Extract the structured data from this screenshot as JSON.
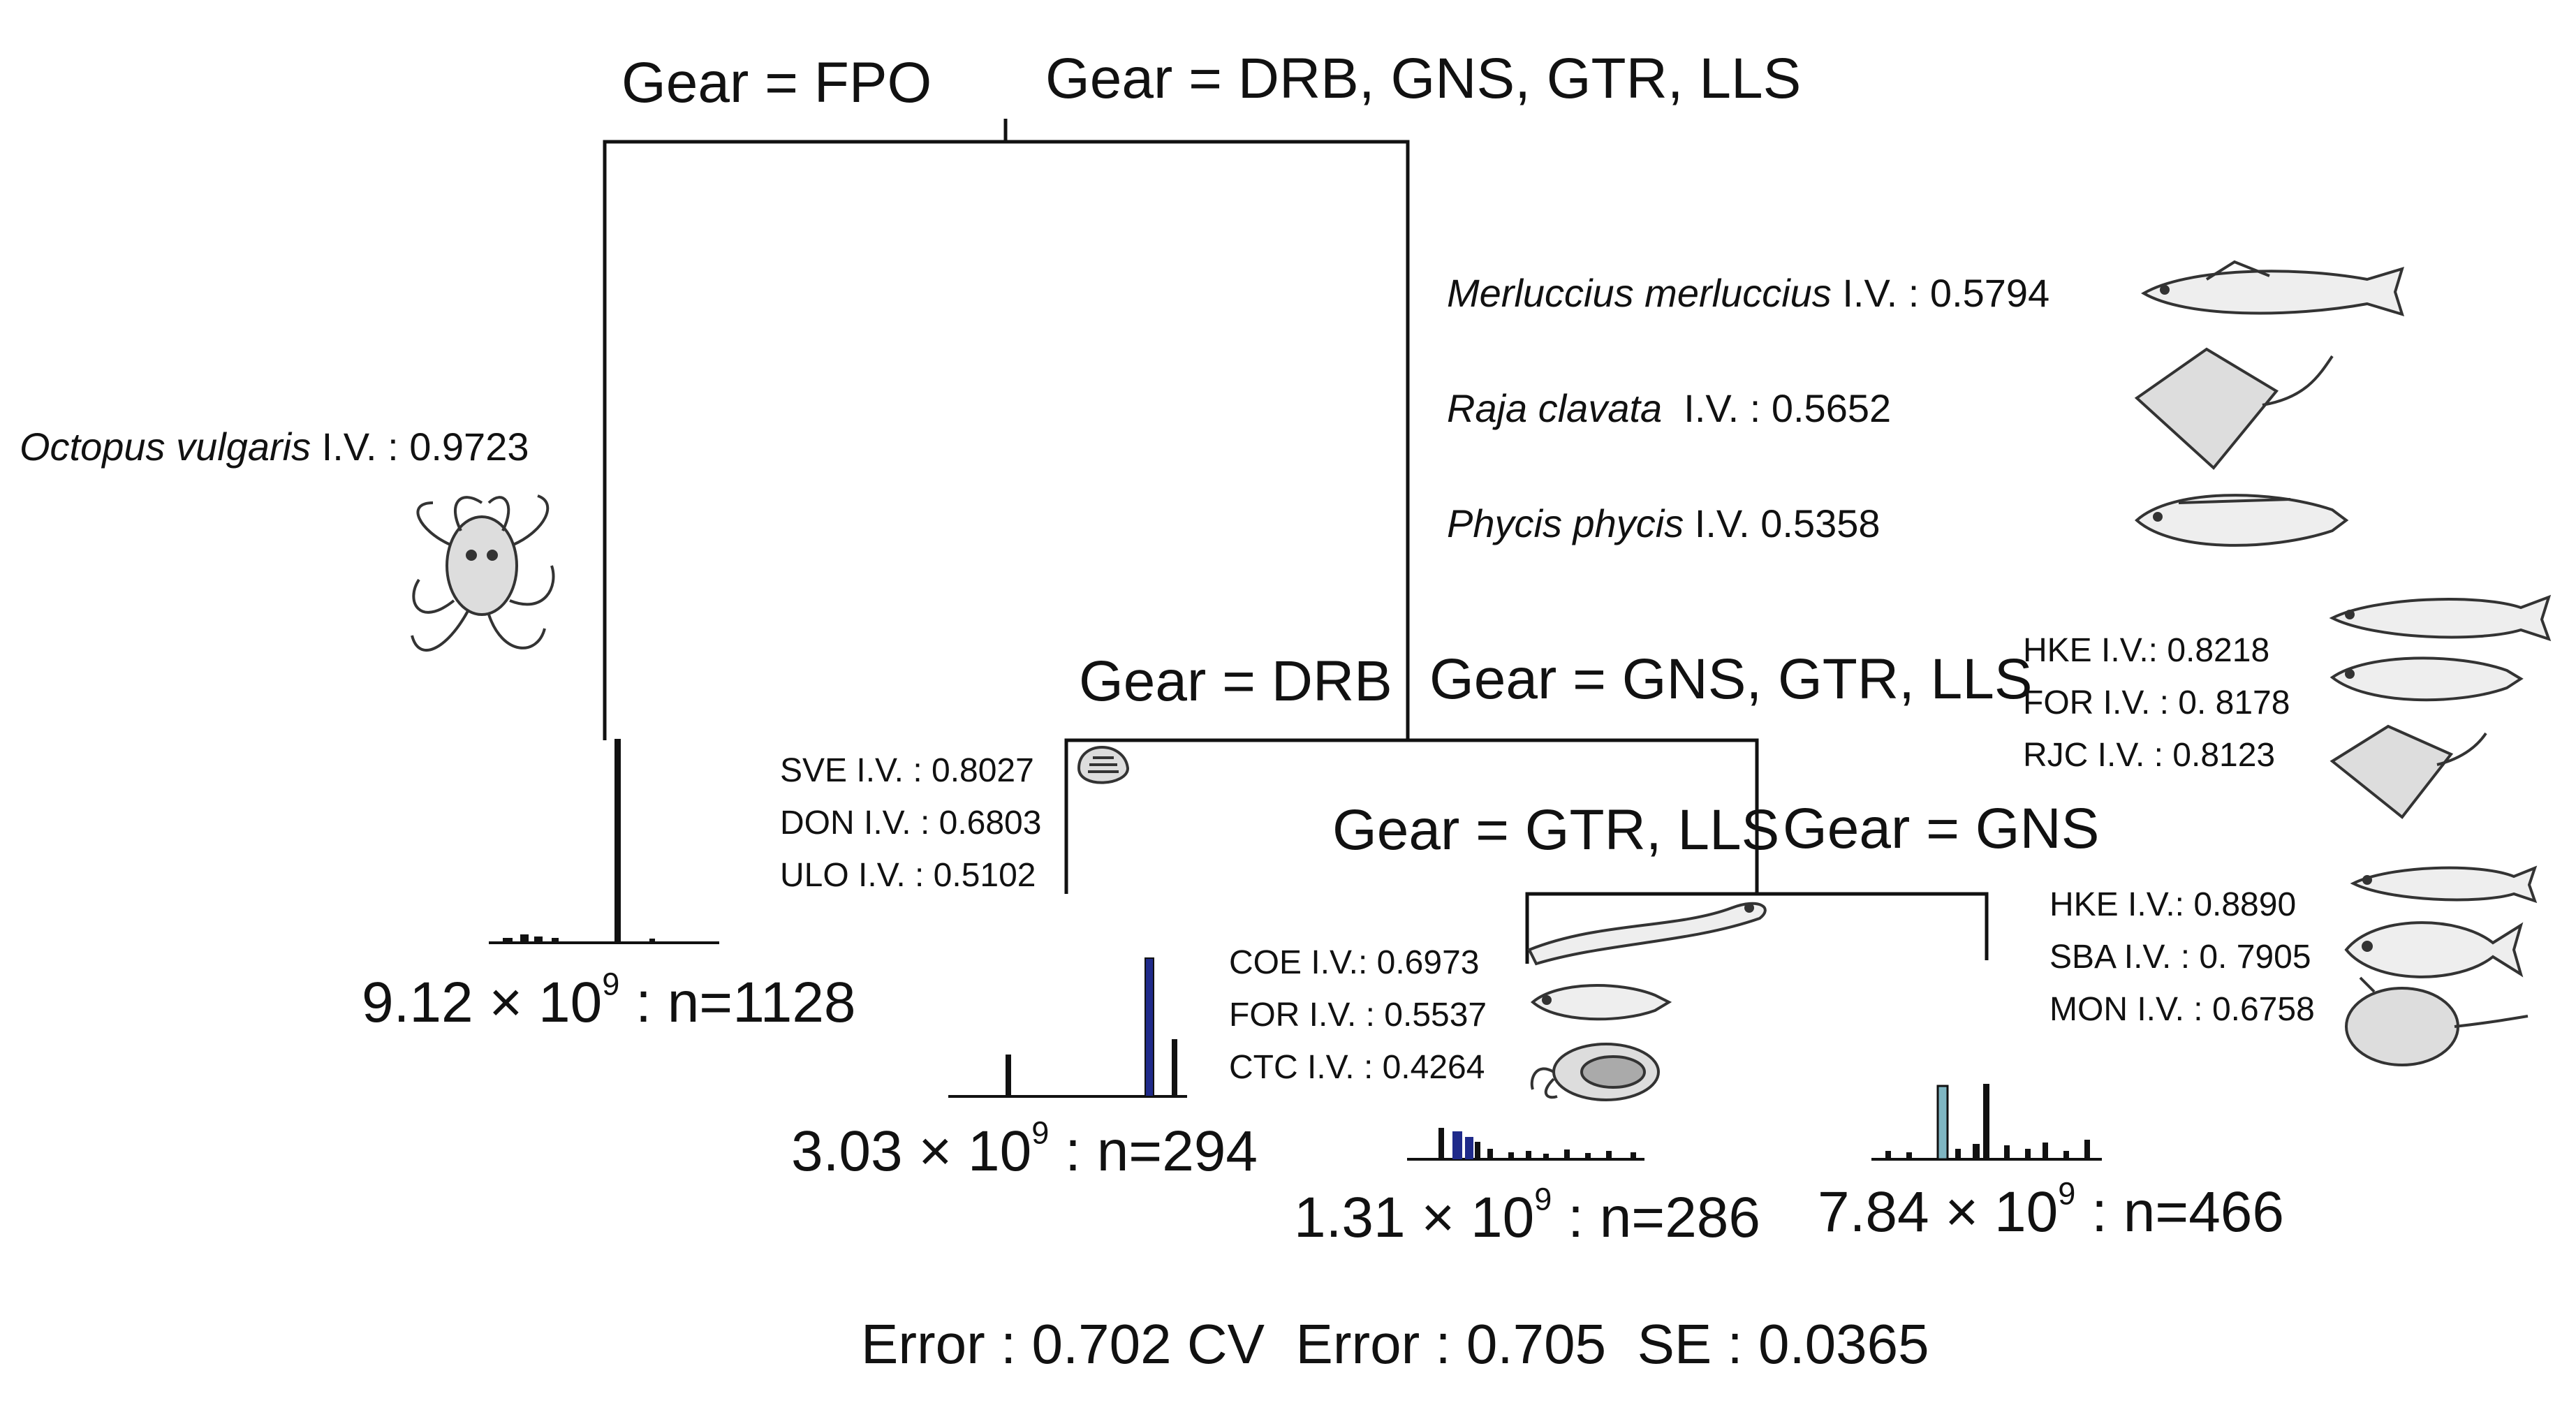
{
  "root": {
    "left_split": "Gear = FPO",
    "right_split": "Gear = DRB, GNS, GTR, LLS"
  },
  "node_fpo": {
    "species": "Octopus vulgaris",
    "iv": "I.V. : 0.9723",
    "icon": "octopus-icon",
    "leaf": {
      "mantissa": "9.12 × 10",
      "exp": "9",
      "suffix": " : n=1128"
    }
  },
  "node_other": {
    "indicators": [
      {
        "species": "Merluccius merluccius",
        "iv": " I.V. : 0.5794",
        "icon": "hake-fish-icon"
      },
      {
        "species": "Raja clavata",
        "iv": "  I.V. : 0.5652",
        "icon": "ray-icon"
      },
      {
        "species": "Phycis phycis",
        "iv": " I.V. 0.5358",
        "icon": "forkbeard-fish-icon"
      }
    ],
    "left_split": "Gear = DRB",
    "right_split": "Gear = GNS, GTR, LLS"
  },
  "node_drb": {
    "indicators": [
      "SVE I.V. : 0.8027",
      "DON I.V. : 0.6803",
      "ULO I.V. : 0.5102"
    ],
    "icon": "clam-shell-icon",
    "leaf": {
      "mantissa": "3.03 × 10",
      "exp": "9",
      "suffix": " : n=294"
    }
  },
  "node_gns_gtr_lls": {
    "indicators": [
      "HKE I.V.: 0.8218",
      "FOR I.V. : 0. 8178",
      "RJC I.V. : 0.8123"
    ],
    "left_split": "Gear = GTR, LLS",
    "right_split": "Gear = GNS"
  },
  "node_gtr_lls": {
    "indicators": [
      "COE I.V.: 0.6973",
      "FOR I.V. : 0.5537",
      "CTC I.V. : 0.4264"
    ],
    "icons": [
      "eel-icon",
      "forkbeard-fish-icon",
      "cuttlefish-icon"
    ],
    "leaf": {
      "mantissa": "1.31 × 10",
      "exp": "9",
      "suffix": " : n=286"
    }
  },
  "node_gns": {
    "indicators": [
      "HKE I.V.: 0.8890",
      "SBA I.V. : 0. 7905",
      "MON I.V. : 0.6758"
    ],
    "icons": [
      "hake-fish-icon",
      "seabream-fish-icon",
      "monkfish-icon"
    ],
    "leaf": {
      "mantissa": "7.84 × 10",
      "exp": "9",
      "suffix": " : n=466"
    }
  },
  "footer": "Error : 0.702 CV  Error : 0.705  SE : 0.0365",
  "colors": {
    "line": "#111111",
    "bar_dark": "#111111",
    "bar_blue": "#1f2a8a",
    "bar_teal": "#7fb6c2"
  }
}
